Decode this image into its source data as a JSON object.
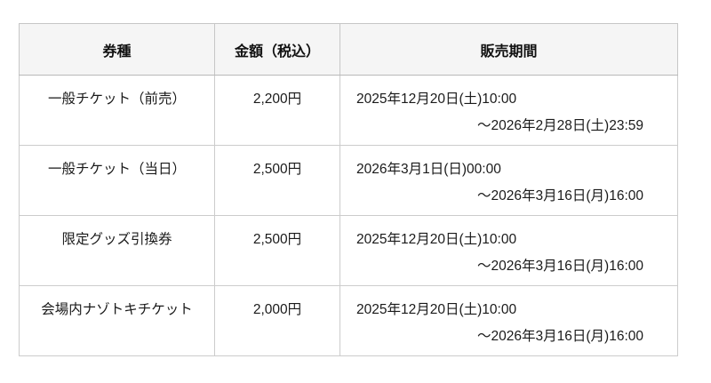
{
  "chart_data": {
    "type": "table",
    "columns": [
      "券種",
      "金額（税込）",
      "販売期間"
    ],
    "rows": [
      [
        "一般チケット（前売）",
        "2,200円",
        "2025年12月20日(土)10:00～2026年2月28日(土)23:59"
      ],
      [
        "一般チケット（当日）",
        "2,500円",
        "2026年3月1日(日)00:00～2026年3月16日(月)16:00"
      ],
      [
        "限定グッズ引換券",
        "2,500円",
        "2025年12月20日(土)10:00～2026年3月16日(月)16:00"
      ],
      [
        "会場内ナゾトキチケット",
        "2,000円",
        "2025年12月20日(土)10:00～2026年3月16日(月)16:00"
      ]
    ]
  },
  "table": {
    "headers": {
      "ticket_type": "券種",
      "price": "金額（税込）",
      "sales_period": "販売期間"
    },
    "rows": [
      {
        "type": "一般チケット（前売）",
        "price": "2,200円",
        "period_start": "2025年12月20日(土)10:00",
        "period_end": "～2026年2月28日(土)23:59"
      },
      {
        "type": "一般チケット（当日）",
        "price": "2,500円",
        "period_start": "2026年3月1日(日)00:00",
        "period_end": "～2026年3月16日(月)16:00"
      },
      {
        "type": "限定グッズ引換券",
        "price": "2,500円",
        "period_start": "2025年12月20日(土)10:00",
        "period_end": "～2026年3月16日(月)16:00"
      },
      {
        "type": "会場内ナゾトキチケット",
        "price": "2,000円",
        "period_start": "2025年12月20日(土)10:00",
        "period_end": "～2026年3月16日(月)16:00"
      }
    ]
  },
  "colors": {
    "header_bg": "#f5f5f5",
    "border": "#cccccc",
    "header_border_bottom": "#b9b9b9",
    "text": "#1a1a1a",
    "page_bg": "#ffffff"
  }
}
